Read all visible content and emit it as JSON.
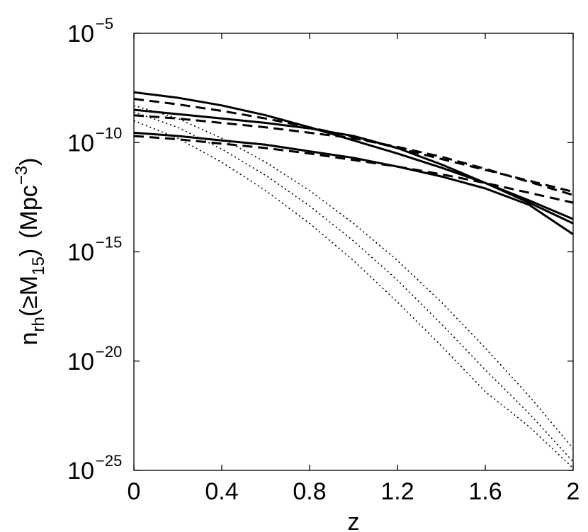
{
  "chart_data": {
    "type": "line",
    "title": "",
    "xlabel": "z",
    "ylabel": {
      "main": "n",
      "sub": "rh",
      "middle": "(≥M",
      "sub2": "15",
      "close": ")",
      "units_open": "(Mpc",
      "units_exp": "−3",
      "units_close": ")"
    },
    "x_ticks": [
      "0",
      "0.4",
      "0.8",
      "1.2",
      "1.6",
      "2"
    ],
    "y_ticks": [
      {
        "base": "10",
        "exp": "−25"
      },
      {
        "base": "10",
        "exp": "−20"
      },
      {
        "base": "10",
        "exp": "−15"
      },
      {
        "base": "10",
        "exp": "−10"
      },
      {
        "base": "10",
        "exp": "−5"
      }
    ],
    "xlim": [
      0,
      2
    ],
    "ylim_log10": [
      -25,
      -5
    ],
    "y_scale": "log",
    "grid": false,
    "legend": "none",
    "series": [
      {
        "style": "solid",
        "x": [
          0,
          0.2,
          0.4,
          0.6,
          0.8,
          1.0,
          1.2,
          1.4,
          1.6,
          1.8,
          2.0
        ],
        "log10_y": [
          -7.7,
          -7.95,
          -8.3,
          -8.75,
          -9.3,
          -9.9,
          -10.5,
          -11.15,
          -11.85,
          -12.65,
          -13.5
        ]
      },
      {
        "style": "solid",
        "x": [
          0,
          0.2,
          0.4,
          0.6,
          0.8,
          1.0,
          1.2,
          1.4,
          1.6,
          1.8,
          2.0
        ],
        "log10_y": [
          -8.5,
          -8.7,
          -8.9,
          -9.1,
          -9.35,
          -9.7,
          -10.25,
          -11.0,
          -11.85,
          -12.75,
          -13.7
        ]
      },
      {
        "style": "solid",
        "x": [
          0,
          0.2,
          0.4,
          0.6,
          0.8,
          1.0,
          1.2,
          1.4,
          1.6,
          1.8,
          2.0
        ],
        "log10_y": [
          -9.55,
          -9.7,
          -9.9,
          -10.1,
          -10.4,
          -10.7,
          -11.1,
          -11.55,
          -12.1,
          -12.85,
          -14.2
        ]
      },
      {
        "style": "dashed",
        "x": [
          0,
          0.2,
          0.4,
          0.6,
          0.8,
          1.0,
          1.2,
          1.4,
          1.6,
          1.8,
          2.0
        ],
        "log10_y": [
          -8.0,
          -8.25,
          -8.55,
          -8.9,
          -9.3,
          -9.75,
          -10.25,
          -10.75,
          -11.25,
          -11.75,
          -12.25
        ]
      },
      {
        "style": "dashed",
        "x": [
          0,
          0.2,
          0.4,
          0.6,
          0.8,
          1.0,
          1.2,
          1.4,
          1.6,
          1.8,
          2.0
        ],
        "log10_y": [
          -8.75,
          -8.9,
          -9.1,
          -9.3,
          -9.55,
          -9.8,
          -10.2,
          -10.65,
          -11.2,
          -11.8,
          -12.4
        ]
      },
      {
        "style": "dashed",
        "x": [
          0,
          0.2,
          0.4,
          0.6,
          0.8,
          1.0,
          1.2,
          1.4,
          1.6,
          1.8,
          2.0
        ],
        "log10_y": [
          -9.7,
          -9.85,
          -10.05,
          -10.25,
          -10.5,
          -10.8,
          -11.1,
          -11.45,
          -11.85,
          -12.3,
          -12.75
        ]
      },
      {
        "style": "dotted",
        "x": [
          0,
          0.2,
          0.4,
          0.6,
          0.8,
          1.0,
          1.2,
          1.4,
          1.6,
          1.8,
          2.0
        ],
        "log10_y": [
          -8.3,
          -8.9,
          -9.8,
          -10.9,
          -12.2,
          -13.7,
          -15.4,
          -17.3,
          -19.4,
          -21.6,
          -24.0
        ]
      },
      {
        "style": "dotted",
        "x": [
          0,
          0.2,
          0.4,
          0.6,
          0.8,
          1.0,
          1.2,
          1.4,
          1.6,
          1.8,
          2.0
        ],
        "log10_y": [
          -8.6,
          -9.3,
          -10.3,
          -11.5,
          -12.9,
          -14.5,
          -16.3,
          -18.3,
          -20.4,
          -22.4,
          -24.6
        ]
      },
      {
        "style": "dotted",
        "x": [
          0,
          0.2,
          0.4,
          0.6,
          0.8,
          1.0,
          1.2,
          1.4,
          1.6,
          1.8,
          2.0
        ],
        "log10_y": [
          -9.0,
          -9.8,
          -10.9,
          -12.2,
          -13.7,
          -15.4,
          -17.3,
          -19.3,
          -21.4,
          -23.0,
          -24.9
        ]
      }
    ]
  }
}
